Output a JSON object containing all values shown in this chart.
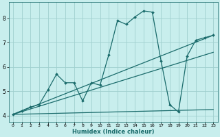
{
  "xlabel": "Humidex (Indice chaleur)",
  "background_color": "#c8eeed",
  "grid_color": "#a0d0cf",
  "line_color": "#1a6b6b",
  "xlim": [
    -0.5,
    23.5
  ],
  "ylim": [
    3.75,
    8.65
  ],
  "xticks": [
    0,
    1,
    2,
    3,
    4,
    5,
    6,
    7,
    8,
    9,
    10,
    11,
    12,
    13,
    14,
    15,
    16,
    17,
    18,
    19,
    20,
    21,
    22,
    23
  ],
  "yticks": [
    4,
    5,
    6,
    7,
    8
  ],
  "main_series_x": [
    0,
    1,
    2,
    3,
    4,
    5,
    6,
    7,
    8,
    9,
    10,
    11,
    12,
    13,
    14,
    15,
    16,
    17,
    18,
    19,
    20,
    21,
    22,
    23
  ],
  "main_series_y": [
    4.05,
    4.2,
    4.35,
    4.45,
    5.05,
    5.7,
    5.35,
    5.35,
    4.6,
    5.35,
    5.25,
    6.5,
    7.9,
    7.75,
    8.05,
    8.3,
    8.25,
    6.25,
    4.45,
    4.15,
    6.45,
    7.1,
    7.2,
    7.3
  ],
  "line2_x": [
    0,
    23
  ],
  "line2_y": [
    4.05,
    7.3
  ],
  "line3_x": [
    0,
    23
  ],
  "line3_y": [
    4.05,
    4.25
  ],
  "line4_x": [
    0,
    23
  ],
  "line4_y": [
    4.05,
    6.6
  ]
}
